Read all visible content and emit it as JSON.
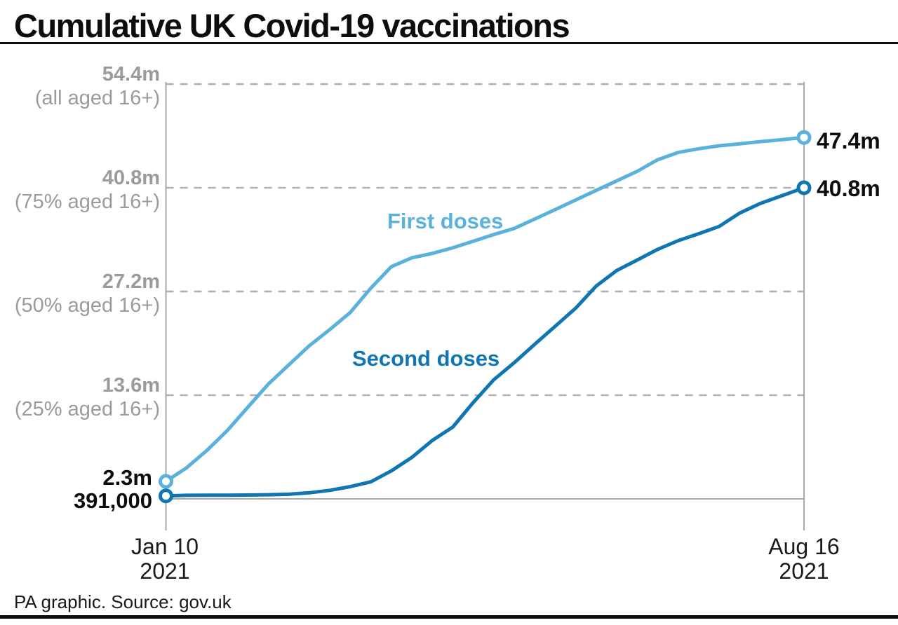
{
  "header": {
    "title": "Cumulative UK Covid-19 vaccinations"
  },
  "footer": {
    "source": "PA graphic. Source: gov.uk"
  },
  "colors": {
    "first_doses": "#5ab1dc",
    "second_doses": "#0f76b2",
    "guide_text": "#9b9b9b",
    "axis": "#a9a9a9",
    "gridline": "#b0b0b0",
    "text": "#0d0d0d"
  },
  "chart_data": {
    "type": "line",
    "title": "Cumulative UK Covid-19 vaccinations",
    "ylabel": "",
    "xlabel": "",
    "ylim": [
      0,
      54.4
    ],
    "grid": "horizontal-dashed",
    "legend_position": "inline-labels",
    "x_axis": {
      "total_days": 218,
      "start": {
        "date": "Jan 10",
        "year": "2021"
      },
      "end": {
        "date": "Aug 16",
        "year": "2021"
      }
    },
    "guides": [
      {
        "value": 54.4,
        "label": "54.4m",
        "sublabel": "(all aged 16+)"
      },
      {
        "value": 40.8,
        "label": "40.8m",
        "sublabel": "(75% aged 16+)"
      },
      {
        "value": 27.2,
        "label": "27.2m",
        "sublabel": "(50% aged 16+)"
      },
      {
        "value": 13.6,
        "label": "13.6m",
        "sublabel": "(25% aged 16+)"
      }
    ],
    "series": [
      {
        "name": "First doses",
        "color": "#5ab1dc",
        "start_label": "2.3m",
        "end_label": "47.4m",
        "unit": "millions",
        "days": [
          0,
          7,
          14,
          21,
          28,
          35,
          42,
          49,
          56,
          63,
          70,
          77,
          84,
          91,
          98,
          105,
          112,
          119,
          126,
          133,
          140,
          147,
          154,
          161,
          168,
          175,
          182,
          189,
          196,
          203,
          210,
          218
        ],
        "values": [
          2.3,
          4.06,
          6.35,
          8.98,
          12.02,
          15.06,
          17.58,
          20.09,
          22.21,
          24.45,
          27.63,
          30.44,
          31.62,
          32.19,
          32.93,
          33.79,
          34.67,
          35.47,
          36.7,
          37.94,
          39.2,
          40.46,
          41.7,
          42.96,
          44.48,
          45.43,
          45.92,
          46.3,
          46.56,
          46.85,
          47.09,
          47.4
        ]
      },
      {
        "name": "Second doses",
        "color": "#0f76b2",
        "start_label": "391,000",
        "end_label": "40.8m",
        "unit": "millions",
        "days": [
          0,
          7,
          14,
          21,
          28,
          35,
          42,
          49,
          56,
          63,
          70,
          77,
          84,
          91,
          98,
          105,
          112,
          119,
          126,
          133,
          140,
          147,
          154,
          161,
          168,
          175,
          182,
          189,
          196,
          203,
          210,
          218
        ],
        "values": [
          0.391,
          0.47,
          0.49,
          0.49,
          0.51,
          0.54,
          0.61,
          0.8,
          1.12,
          1.61,
          2.23,
          3.67,
          5.43,
          7.66,
          9.42,
          12.64,
          15.62,
          17.86,
          20.28,
          22.64,
          25.01,
          27.92,
          29.95,
          31.33,
          32.72,
          33.86,
          34.77,
          35.73,
          37.47,
          38.73,
          39.7,
          40.8
        ]
      }
    ]
  }
}
